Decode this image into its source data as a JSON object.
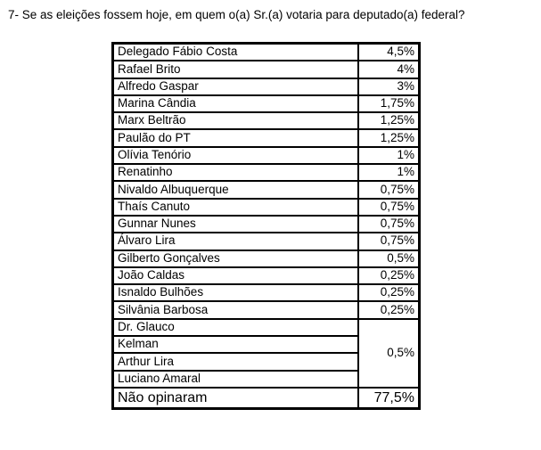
{
  "title": "7- Se as eleições fossem hoje, em quem o(a) Sr.(a) votaria para deputado(a) federal?",
  "colors": {
    "background": "#ffffff",
    "text": "#000000",
    "border": "#000000"
  },
  "table": {
    "rows": [
      {
        "name": "Delegado Fábio Costa",
        "value": "4,5%"
      },
      {
        "name": "Rafael Brito",
        "value": "4%"
      },
      {
        "name": "Alfredo Gaspar",
        "value": "3%"
      },
      {
        "name": "Marina Cândia",
        "value": "1,75%"
      },
      {
        "name": "Marx Beltrão",
        "value": "1,25%"
      },
      {
        "name": "Paulão do PT",
        "value": "1,25%"
      },
      {
        "name": "Olívia Tenório",
        "value": "1%"
      },
      {
        "name": "Renatinho",
        "value": "1%"
      },
      {
        "name": "Nivaldo Albuquerque",
        "value": "0,75%"
      },
      {
        "name": "Thaís Canuto",
        "value": "0,75%"
      },
      {
        "name": "Gunnar Nunes",
        "value": "0,75%"
      },
      {
        "name": "Álvaro Lira",
        "value": "0,75%"
      },
      {
        "name": "Gilberto Gonçalves",
        "value": "0,5%"
      },
      {
        "name": "João Caldas",
        "value": "0,25%"
      },
      {
        "name": "Isnaldo Bulhões",
        "value": "0,25%"
      },
      {
        "name": "Silvânia Barbosa",
        "value": "0,25%"
      }
    ],
    "merged_rows": [
      {
        "name": "Dr. Glauco"
      },
      {
        "name": "Kelman"
      },
      {
        "name": "Arthur Lira"
      },
      {
        "name": "Luciano Amaral"
      }
    ],
    "merged_value": "0,5%",
    "footer_row": {
      "name": "Não opinaram",
      "value": "77,5%"
    }
  }
}
